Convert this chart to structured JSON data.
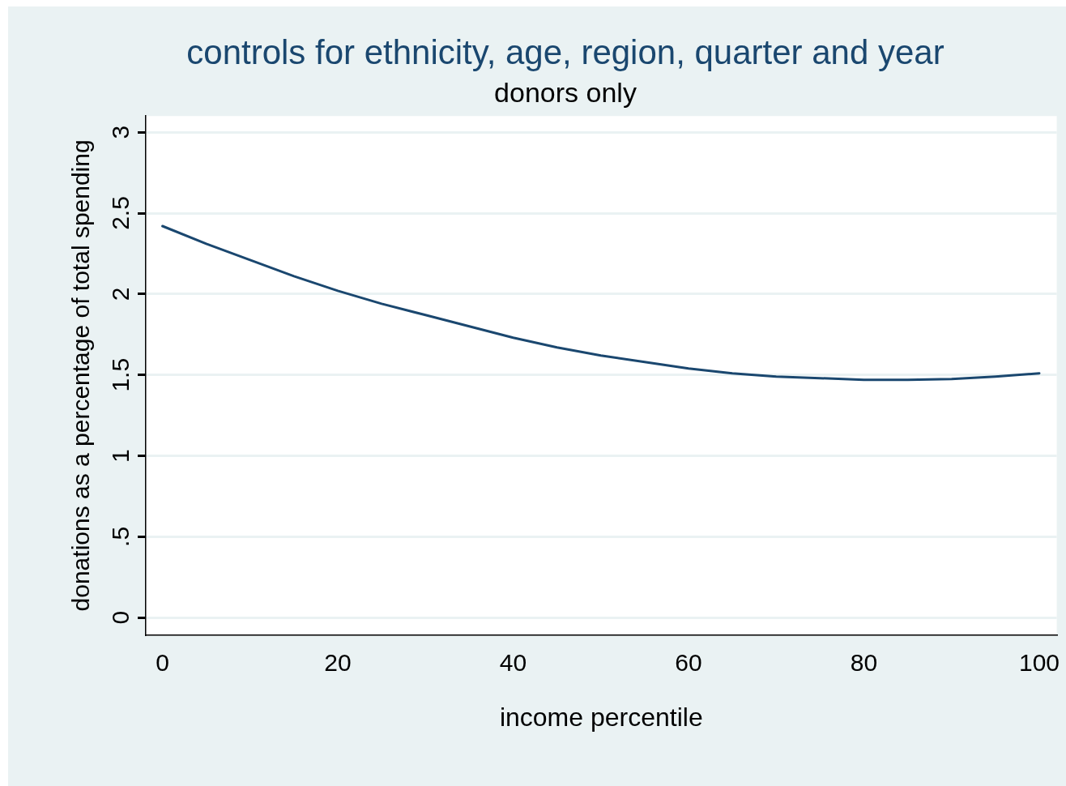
{
  "chart_data": {
    "type": "line",
    "title": "controls for ethnicity, age, region, quarter and year",
    "subtitle": "donors only",
    "xlabel": "income percentile",
    "ylabel": "donations as a percentage of total spending",
    "x": [
      0,
      5,
      10,
      15,
      20,
      25,
      30,
      35,
      40,
      45,
      50,
      55,
      60,
      65,
      70,
      75,
      80,
      85,
      90,
      95,
      100
    ],
    "series": [
      {
        "color": "#1a476f",
        "values": [
          2.42,
          2.31,
          2.21,
          2.11,
          2.02,
          1.94,
          1.87,
          1.8,
          1.73,
          1.67,
          1.62,
          1.58,
          1.54,
          1.51,
          1.49,
          1.48,
          1.47,
          1.47,
          1.475,
          1.49,
          1.51
        ]
      }
    ],
    "xlim": [
      -1.9,
      102
    ],
    "ylim": [
      -0.107,
      3.1
    ],
    "xticks": [
      0,
      20,
      40,
      60,
      80,
      100
    ],
    "yticks": [
      0,
      {
        "value": 0.5,
        "label": ".5"
      },
      1,
      1.5,
      2,
      2.5,
      3
    ],
    "grid": "y",
    "legend": false,
    "marker": "none",
    "line_style": "solid"
  }
}
